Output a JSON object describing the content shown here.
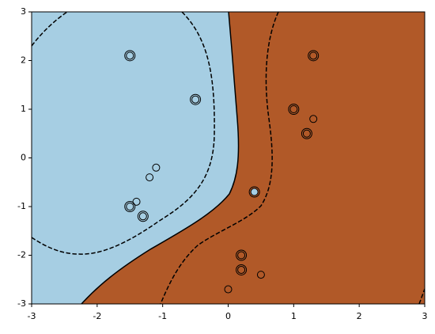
{
  "chart_data": {
    "type": "scatter",
    "series": [
      {
        "color": "#a6cee3",
        "x": [
          0.4,
          -1.5,
          -1.4,
          -1.3,
          -1.1,
          -1.2,
          -0.5,
          -1.5
        ],
        "y": [
          -0.7,
          -1,
          -0.9,
          -1.2,
          -0.2,
          -0.4,
          1.2,
          2.1
        ]
      },
      {
        "color": "#b15928",
        "x": [
          1,
          1.3,
          1.2,
          0.2,
          0.5,
          0.2,
          0,
          1.3
        ],
        "y": [
          1,
          0.8,
          0.5,
          -2,
          -2.4,
          -2.3,
          -2.7,
          2.1
        ]
      }
    ],
    "support_vectors": {
      "x": [
        0.4,
        -1.5,
        -1.3,
        -0.5,
        -1.5,
        1,
        1.2,
        0.2,
        0.2,
        1.3
      ],
      "y": [
        -0.7,
        -1,
        -1.2,
        1.2,
        2.1,
        1,
        0.5,
        -2,
        -2.3,
        2.1
      ]
    },
    "xlim": [
      -3,
      3
    ],
    "ylim": [
      -3,
      3
    ],
    "xticks": [
      -3,
      -2,
      -1,
      0,
      1,
      2,
      3
    ],
    "yticks": [
      -3,
      -2,
      -1,
      0,
      1,
      2,
      3
    ]
  }
}
